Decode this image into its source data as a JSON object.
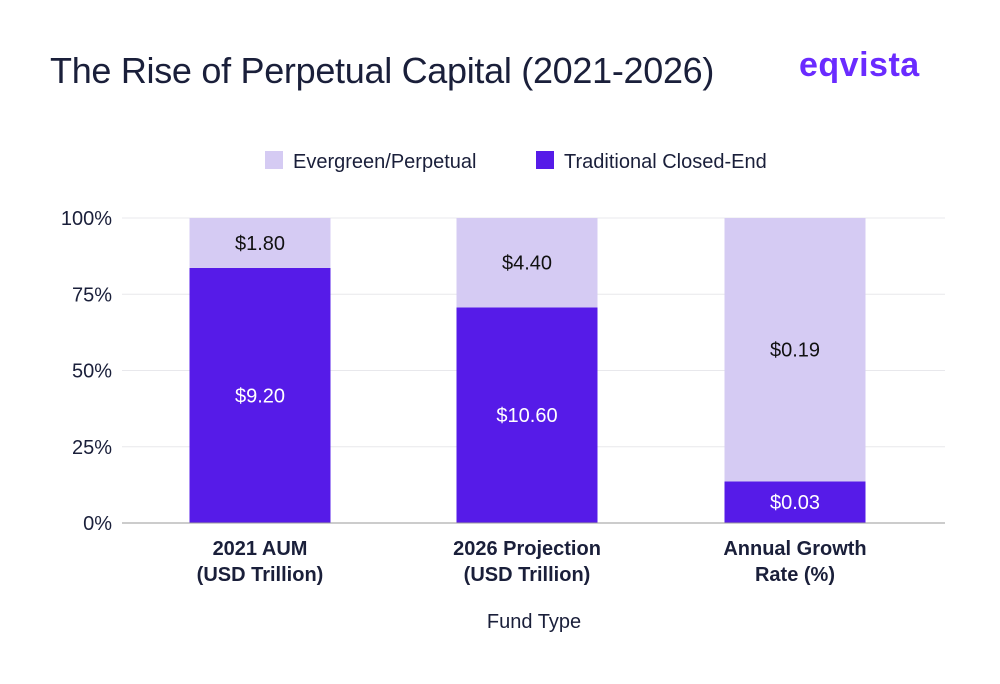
{
  "header": {
    "title": "The Rise of Perpetual Capital (2021-2026)",
    "logo_text": "eqvista"
  },
  "colors": {
    "evergreen": "#d5cbf3",
    "traditional": "#561be8",
    "text_dark": "#1a1f3a",
    "logo": "#6a2bff",
    "grid": "#e8e8ec",
    "axis": "#999999"
  },
  "chart_data": {
    "type": "bar",
    "stacked": true,
    "normalized": true,
    "xlabel": "Fund Type",
    "ylabel": "",
    "ylim": [
      0,
      100
    ],
    "yticks": [
      "0%",
      "25%",
      "50%",
      "75%",
      "100%"
    ],
    "ytick_values": [
      0,
      25,
      50,
      75,
      100
    ],
    "categories": [
      [
        "2021 AUM",
        "(USD Trillion)"
      ],
      [
        "2026 Projection",
        "(USD Trillion)"
      ],
      [
        "Annual Growth",
        "Rate (%)"
      ]
    ],
    "series": [
      {
        "name": "Traditional Closed-End",
        "color": "#561be8",
        "values": [
          9.2,
          10.6,
          0.03
        ],
        "labels": [
          "$9.20",
          "$10.60",
          "$0.03"
        ],
        "label_color": "#ffffff"
      },
      {
        "name": "Evergreen/Perpetual",
        "color": "#d5cbf3",
        "values": [
          1.8,
          4.4,
          0.19
        ],
        "labels": [
          "$1.80",
          "$4.40",
          "$0.19"
        ],
        "label_color": "#111111"
      }
    ],
    "legend": {
      "position": "top",
      "order": [
        "Evergreen/Perpetual",
        "Traditional Closed-End"
      ]
    },
    "grid": true
  }
}
